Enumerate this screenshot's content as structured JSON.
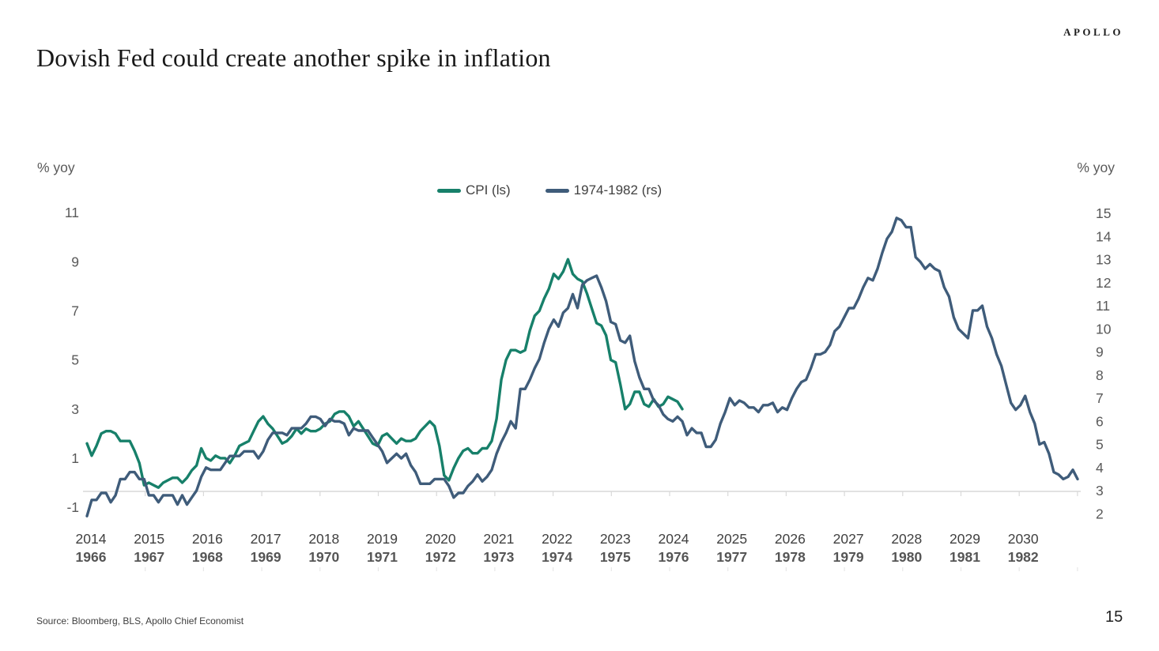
{
  "header": {
    "brand": "APOLLO",
    "title": "Dovish Fed could create another spike in inflation"
  },
  "footer": {
    "source": "Source: Bloomberg, BLS, Apollo Chief Economist",
    "page_number": "15"
  },
  "chart_data": {
    "type": "line",
    "title": "Dovish Fed could create another spike in inflation",
    "grid": "off",
    "legend_position": "top-center",
    "left_axis": {
      "label": "% yoy",
      "min": -1,
      "max": 11,
      "ticks": [
        11,
        9,
        7,
        5,
        3,
        1,
        -1
      ]
    },
    "right_axis": {
      "label": "% yoy",
      "min": 2,
      "max": 15,
      "ticks": [
        15,
        14,
        13,
        12,
        11,
        10,
        9,
        8,
        7,
        6,
        5,
        4,
        3,
        2
      ]
    },
    "x_axis": {
      "primary_years": [
        "2014",
        "2015",
        "2016",
        "2017",
        "2018",
        "2019",
        "2020",
        "2021",
        "2022",
        "2023",
        "2024",
        "2025",
        "2026",
        "2027",
        "2028",
        "2029",
        "2030"
      ],
      "secondary_years": [
        "1966",
        "1967",
        "1968",
        "1969",
        "1970",
        "1971",
        "1972",
        "1973",
        "1974",
        "1975",
        "1976",
        "1977",
        "1978",
        "1979",
        "1980",
        "1981",
        "1982"
      ]
    },
    "colors": {
      "cpi": "#17806a",
      "overlay": "#3f5c7a",
      "axis_line": "#d9d9d9",
      "tick_text": "#595959"
    },
    "legend": [
      {
        "name": "CPI (ls)"
      },
      {
        "name": "1974-1982 (rs)"
      }
    ],
    "series": [
      {
        "name": "CPI (ls)",
        "axis": "left",
        "frequency": "monthly",
        "start": "2014-01",
        "end": "2024-06",
        "color": "#17806a",
        "values": [
          1.6,
          1.1,
          1.5,
          2.0,
          2.1,
          2.1,
          2.0,
          1.7,
          1.7,
          1.7,
          1.3,
          0.8,
          -0.1,
          0.0,
          -0.1,
          -0.2,
          0.0,
          0.1,
          0.2,
          0.2,
          0.0,
          0.2,
          0.5,
          0.7,
          1.4,
          1.0,
          0.9,
          1.1,
          1.0,
          1.0,
          0.8,
          1.1,
          1.5,
          1.6,
          1.7,
          2.1,
          2.5,
          2.7,
          2.4,
          2.2,
          1.9,
          1.6,
          1.7,
          1.9,
          2.2,
          2.0,
          2.2,
          2.1,
          2.1,
          2.2,
          2.4,
          2.5,
          2.8,
          2.9,
          2.9,
          2.7,
          2.3,
          2.5,
          2.2,
          1.9,
          1.6,
          1.5,
          1.9,
          2.0,
          1.8,
          1.6,
          1.8,
          1.7,
          1.7,
          1.8,
          2.1,
          2.3,
          2.5,
          2.3,
          1.5,
          0.3,
          0.1,
          0.6,
          1.0,
          1.3,
          1.4,
          1.2,
          1.2,
          1.4,
          1.4,
          1.7,
          2.6,
          4.2,
          5.0,
          5.4,
          5.4,
          5.3,
          5.4,
          6.2,
          6.8,
          7.0,
          7.5,
          7.9,
          8.5,
          8.3,
          8.6,
          9.1,
          8.5,
          8.3,
          8.2,
          7.7,
          7.1,
          6.5,
          6.4,
          6.0,
          5.0,
          4.9,
          4.0,
          3.0,
          3.2,
          3.7,
          3.7,
          3.2,
          3.1,
          3.4,
          3.1,
          3.2,
          3.5,
          3.4,
          3.3,
          3.0
        ]
      },
      {
        "name": "1974-1982 (rs)",
        "axis": "right",
        "frequency": "monthly",
        "start": "1966-01",
        "end": "1983-05",
        "color": "#3f5c7a",
        "values": [
          1.9,
          2.6,
          2.6,
          2.9,
          2.9,
          2.5,
          2.8,
          3.5,
          3.5,
          3.8,
          3.8,
          3.5,
          3.5,
          2.8,
          2.8,
          2.5,
          2.8,
          2.8,
          2.8,
          2.4,
          2.8,
          2.4,
          2.7,
          3.0,
          3.6,
          4.0,
          3.9,
          3.9,
          3.9,
          4.2,
          4.5,
          4.5,
          4.5,
          4.7,
          4.7,
          4.7,
          4.4,
          4.7,
          5.2,
          5.5,
          5.5,
          5.5,
          5.4,
          5.7,
          5.7,
          5.7,
          5.9,
          6.2,
          6.2,
          6.1,
          5.8,
          6.1,
          6.0,
          6.0,
          5.9,
          5.4,
          5.7,
          5.6,
          5.6,
          5.6,
          5.3,
          5.0,
          4.7,
          4.2,
          4.4,
          4.6,
          4.4,
          4.6,
          4.1,
          3.8,
          3.3,
          3.3,
          3.3,
          3.5,
          3.5,
          3.5,
          3.2,
          2.7,
          2.9,
          2.9,
          3.2,
          3.4,
          3.7,
          3.4,
          3.6,
          3.9,
          4.6,
          5.1,
          5.5,
          6.0,
          5.7,
          7.4,
          7.4,
          7.8,
          8.3,
          8.7,
          9.4,
          10.0,
          10.4,
          10.1,
          10.7,
          10.9,
          11.5,
          10.9,
          11.9,
          12.1,
          12.2,
          12.3,
          11.8,
          11.2,
          10.3,
          10.2,
          9.5,
          9.4,
          9.7,
          8.6,
          7.9,
          7.4,
          7.4,
          6.9,
          6.7,
          6.3,
          6.1,
          6.0,
          6.2,
          6.0,
          5.4,
          5.7,
          5.5,
          5.5,
          4.9,
          4.9,
          5.2,
          5.9,
          6.4,
          7.0,
          6.7,
          6.9,
          6.8,
          6.6,
          6.6,
          6.4,
          6.7,
          6.7,
          6.8,
          6.4,
          6.6,
          6.5,
          7.0,
          7.4,
          7.7,
          7.8,
          8.3,
          8.9,
          8.9,
          9.0,
          9.3,
          9.9,
          10.1,
          10.5,
          10.9,
          10.9,
          11.3,
          11.8,
          12.2,
          12.1,
          12.6,
          13.3,
          13.9,
          14.2,
          14.8,
          14.7,
          14.4,
          14.4,
          13.1,
          12.9,
          12.6,
          12.8,
          12.6,
          12.5,
          11.8,
          11.4,
          10.5,
          10.0,
          9.8,
          9.6,
          10.8,
          10.8,
          11.0,
          10.1,
          9.6,
          8.9,
          8.4,
          7.6,
          6.8,
          6.5,
          6.7,
          7.1,
          6.4,
          5.9,
          5.0,
          5.1,
          4.6,
          3.8,
          3.7,
          3.5,
          3.6,
          3.9,
          3.5
        ]
      }
    ]
  }
}
